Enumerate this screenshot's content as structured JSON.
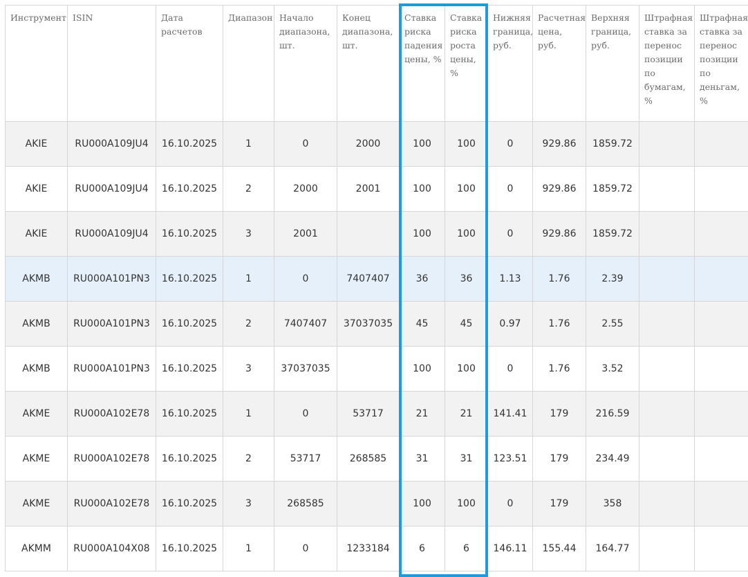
{
  "columns": [
    "Инструмент",
    "ISIN",
    "Дата расчетов",
    "Диапазон",
    "Начало диапазона, шт.",
    "Конец диапазона, шт.",
    "Ставка риска падения цены, %",
    "Ставка риска роста цены, %",
    "Нижняя граница, руб.",
    "Расчетная цена, руб.",
    "Верхняя граница, руб.",
    "Штрафная ставка за перенос позиции по бумагам, %",
    "Штрафная ставка за перенос позиции по деньгам, %"
  ],
  "rows": [
    [
      "AKIE",
      "RU000A109JU4",
      "16.10.2025",
      "1",
      "0",
      "2000",
      "100",
      "100",
      "0",
      "929.86",
      "1859.72",
      "",
      ""
    ],
    [
      "AKIE",
      "RU000A109JU4",
      "16.10.2025",
      "2",
      "2000",
      "2001",
      "100",
      "100",
      "0",
      "929.86",
      "1859.72",
      "",
      ""
    ],
    [
      "AKIE",
      "RU000A109JU4",
      "16.10.2025",
      "3",
      "2001",
      "",
      "100",
      "100",
      "0",
      "929.86",
      "1859.72",
      "",
      ""
    ],
    [
      "AKMB",
      "RU000A101PN3",
      "16.10.2025",
      "1",
      "0",
      "7407407",
      "36",
      "36",
      "1.13",
      "1.76",
      "2.39",
      "",
      ""
    ],
    [
      "AKMB",
      "RU000A101PN3",
      "16.10.2025",
      "2",
      "7407407",
      "37037035",
      "45",
      "45",
      "0.97",
      "1.76",
      "2.55",
      "",
      ""
    ],
    [
      "AKMB",
      "RU000A101PN3",
      "16.10.2025",
      "3",
      "37037035",
      "",
      "100",
      "100",
      "0",
      "1.76",
      "3.52",
      "",
      ""
    ],
    [
      "AKME",
      "RU000A102E78",
      "16.10.2025",
      "1",
      "0",
      "53717",
      "21",
      "21",
      "141.41",
      "179",
      "216.59",
      "",
      ""
    ],
    [
      "AKME",
      "RU000A102E78",
      "16.10.2025",
      "2",
      "53717",
      "268585",
      "31",
      "31",
      "123.51",
      "179",
      "234.49",
      "",
      ""
    ],
    [
      "AKME",
      "RU000A102E78",
      "16.10.2025",
      "3",
      "268585",
      "",
      "100",
      "100",
      "0",
      "179",
      "358",
      "",
      ""
    ],
    [
      "AKMM",
      "RU000A104X08",
      "16.10.2025",
      "1",
      "0",
      "1233184",
      "6",
      "6",
      "146.11",
      "155.44",
      "164.77",
      "",
      ""
    ]
  ],
  "highlighted_row": 3,
  "highlighted_columns": [
    6,
    7
  ],
  "colors": {
    "highlight_border": "#1a9de0",
    "row_odd": "#f2f2f2",
    "row_even": "#ffffff",
    "row_hover": "#e6f0fb",
    "grid": "#d6d6d6"
  }
}
